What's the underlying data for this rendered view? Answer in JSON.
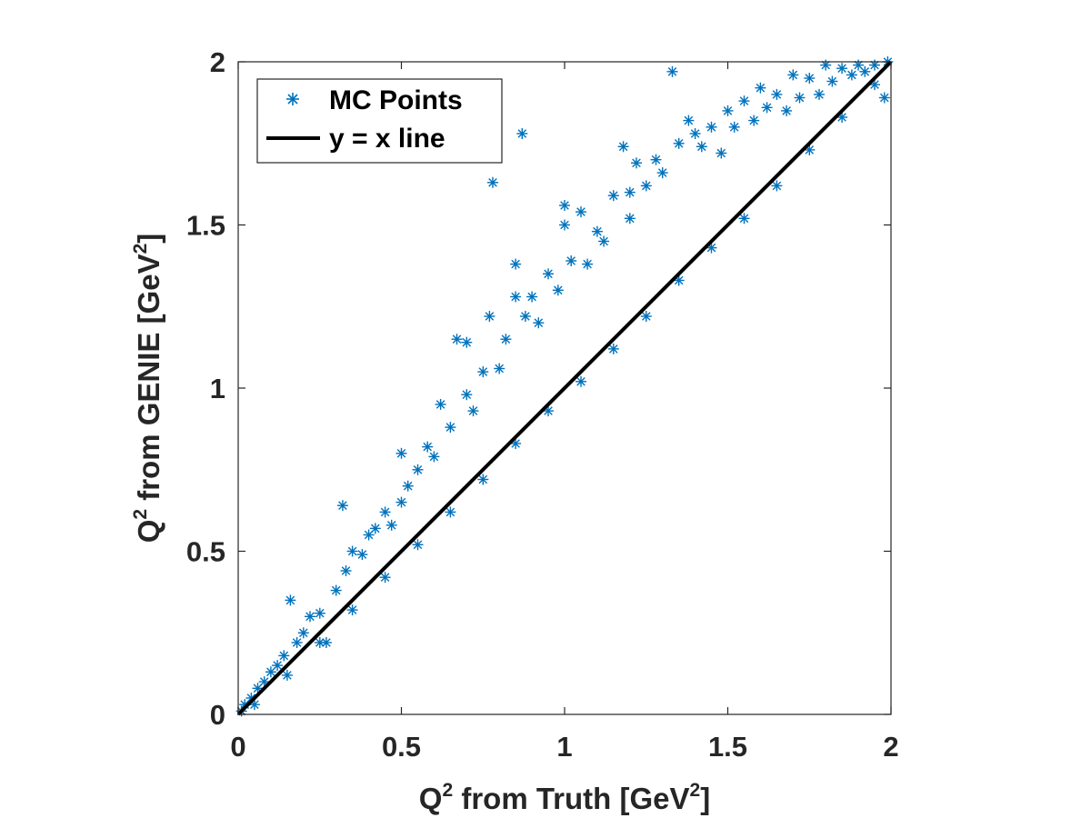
{
  "chart_data": {
    "type": "scatter",
    "xlim": [
      0,
      2
    ],
    "ylim": [
      0,
      2
    ],
    "x_ticks": [
      "0",
      "0.5",
      "1",
      "1.5",
      "2"
    ],
    "y_ticks": [
      "0",
      "0.5",
      "1",
      "1.5",
      "2"
    ],
    "xlabel": {
      "pre": "Q",
      "sup": "2",
      "mid": " from Truth [GeV",
      "sup2": "2",
      "post": "]"
    },
    "ylabel": {
      "pre": "Q",
      "sup": "2",
      "mid": " from GENIE [GeV",
      "sup2": "2",
      "post": "]"
    },
    "grid": false,
    "legend_position": "top-left",
    "series": [
      {
        "name": "MC Points",
        "kind": "scatter",
        "marker": "asterisk",
        "color": "#0072BD",
        "points": [
          [
            0.01,
            0.01
          ],
          [
            0.02,
            0.03
          ],
          [
            0.04,
            0.05
          ],
          [
            0.06,
            0.08
          ],
          [
            0.08,
            0.1
          ],
          [
            0.1,
            0.13
          ],
          [
            0.12,
            0.15
          ],
          [
            0.14,
            0.18
          ],
          [
            0.16,
            0.35
          ],
          [
            0.18,
            0.22
          ],
          [
            0.2,
            0.25
          ],
          [
            0.22,
            0.3
          ],
          [
            0.25,
            0.31
          ],
          [
            0.27,
            0.22
          ],
          [
            0.3,
            0.38
          ],
          [
            0.32,
            0.64
          ],
          [
            0.33,
            0.44
          ],
          [
            0.35,
            0.5
          ],
          [
            0.38,
            0.49
          ],
          [
            0.4,
            0.55
          ],
          [
            0.42,
            0.57
          ],
          [
            0.45,
            0.62
          ],
          [
            0.47,
            0.58
          ],
          [
            0.5,
            0.65
          ],
          [
            0.5,
            0.8
          ],
          [
            0.52,
            0.7
          ],
          [
            0.55,
            0.75
          ],
          [
            0.58,
            0.82
          ],
          [
            0.6,
            0.79
          ],
          [
            0.62,
            0.95
          ],
          [
            0.65,
            0.88
          ],
          [
            0.67,
            1.15
          ],
          [
            0.7,
            1.14
          ],
          [
            0.7,
            0.98
          ],
          [
            0.72,
            0.93
          ],
          [
            0.75,
            1.05
          ],
          [
            0.77,
            1.22
          ],
          [
            0.78,
            1.63
          ],
          [
            0.8,
            1.06
          ],
          [
            0.82,
            1.15
          ],
          [
            0.85,
            1.38
          ],
          [
            0.85,
            1.28
          ],
          [
            0.87,
            1.78
          ],
          [
            0.88,
            1.22
          ],
          [
            0.9,
            1.28
          ],
          [
            0.92,
            1.2
          ],
          [
            0.95,
            1.35
          ],
          [
            0.98,
            1.3
          ],
          [
            1.0,
            1.56
          ],
          [
            1.0,
            1.5
          ],
          [
            1.02,
            1.39
          ],
          [
            1.05,
            1.54
          ],
          [
            1.07,
            1.38
          ],
          [
            1.1,
            1.48
          ],
          [
            1.12,
            1.45
          ],
          [
            1.15,
            1.59
          ],
          [
            1.18,
            1.74
          ],
          [
            1.2,
            1.6
          ],
          [
            1.2,
            1.52
          ],
          [
            1.22,
            1.69
          ],
          [
            1.25,
            1.62
          ],
          [
            1.28,
            1.7
          ],
          [
            1.3,
            1.66
          ],
          [
            1.33,
            1.97
          ],
          [
            1.35,
            1.75
          ],
          [
            1.38,
            1.82
          ],
          [
            1.4,
            1.78
          ],
          [
            1.42,
            1.74
          ],
          [
            1.45,
            1.8
          ],
          [
            1.48,
            1.72
          ],
          [
            1.5,
            1.85
          ],
          [
            1.52,
            1.8
          ],
          [
            1.55,
            1.88
          ],
          [
            1.58,
            1.82
          ],
          [
            1.6,
            1.92
          ],
          [
            1.62,
            1.86
          ],
          [
            1.65,
            1.9
          ],
          [
            1.68,
            1.85
          ],
          [
            1.7,
            1.96
          ],
          [
            1.72,
            1.89
          ],
          [
            1.75,
            1.95
          ],
          [
            1.78,
            1.9
          ],
          [
            1.8,
            1.99
          ],
          [
            1.82,
            1.94
          ],
          [
            1.85,
            1.98
          ],
          [
            1.88,
            1.96
          ],
          [
            1.9,
            1.99
          ],
          [
            1.92,
            1.97
          ],
          [
            1.95,
            1.99
          ],
          [
            1.98,
            1.89
          ],
          [
            1.99,
            2.0
          ],
          [
            0.05,
            0.03
          ],
          [
            0.15,
            0.12
          ],
          [
            0.25,
            0.22
          ],
          [
            0.35,
            0.32
          ],
          [
            0.45,
            0.42
          ],
          [
            0.55,
            0.52
          ],
          [
            0.65,
            0.62
          ],
          [
            0.75,
            0.72
          ],
          [
            0.85,
            0.83
          ],
          [
            0.95,
            0.93
          ],
          [
            1.05,
            1.02
          ],
          [
            1.15,
            1.12
          ],
          [
            1.25,
            1.22
          ],
          [
            1.35,
            1.33
          ],
          [
            1.45,
            1.43
          ],
          [
            1.55,
            1.52
          ],
          [
            1.65,
            1.62
          ],
          [
            1.75,
            1.73
          ],
          [
            1.85,
            1.83
          ],
          [
            1.95,
            1.93
          ]
        ]
      },
      {
        "name": "y = x line",
        "kind": "line",
        "color": "#000000",
        "points": [
          [
            0,
            0
          ],
          [
            2,
            2
          ]
        ]
      }
    ]
  }
}
